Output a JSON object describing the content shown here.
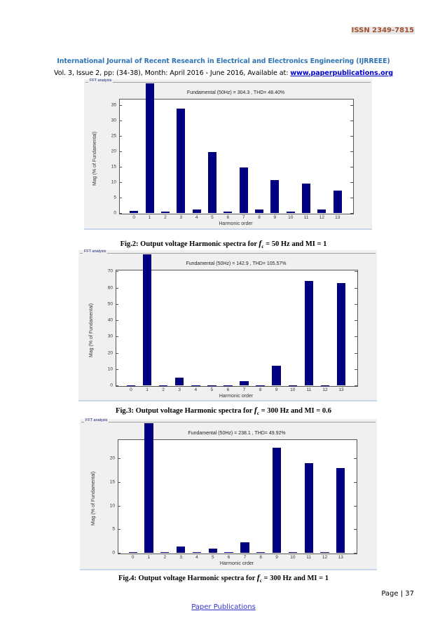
{
  "header": {
    "issn": "ISSN 2349-7815",
    "journal": "International Journal of Recent Research in Electrical and Electronics Engineering (IJRREEE)",
    "vol_text": "Vol. 3, Issue 2, pp: (34-38), Month: April 2016 - June 2016, Available at: ",
    "url": "www.paperpublications.org"
  },
  "figures": [
    {
      "panel_label": "FFT analysis",
      "caption_prefix": "Fig.2: Output voltage Harmonic spectra for ",
      "caption_var": "f",
      "caption_sub": "c",
      "caption_suffix": " = 50 Hz and MI = 1"
    },
    {
      "panel_label": "FFT analysis",
      "caption_prefix": "Fig.3: Output voltage Harmonic spectra for ",
      "caption_var": "f",
      "caption_sub": "c",
      "caption_suffix": " = 300 Hz and MI = 0.6"
    },
    {
      "panel_label": "FFT analysis",
      "caption_prefix": "Fig.4: Output voltage Harmonic spectra for ",
      "caption_var": "f",
      "caption_sub": "c",
      "caption_suffix": " = 300 Hz and MI = 1"
    }
  ],
  "chart_data": [
    {
      "type": "bar",
      "title": "Fundamental (50Hz) = 304.3 , THD= 48.40%",
      "xlabel": "Harmonic order",
      "ylabel": "Mag (% of Fundamental)",
      "categories": [
        "0",
        "1",
        "2",
        "3",
        "4",
        "5",
        "6",
        "7",
        "8",
        "9",
        "10",
        "11",
        "12",
        "13"
      ],
      "values": [
        0.6,
        100,
        0.5,
        33.8,
        1.2,
        19.7,
        0.5,
        14.7,
        1.2,
        10.6,
        0.5,
        9.5,
        1.2,
        7.2
      ],
      "yticks": [
        0,
        5,
        10,
        15,
        20,
        25,
        30,
        35
      ],
      "ylim": [
        0,
        37
      ],
      "grid": false,
      "note": "Fundamental bar (order 1) clipped above axis"
    },
    {
      "type": "bar",
      "title": "Fundamental (50Hz) = 142.9 , THD= 105.57%",
      "xlabel": "Harmonic order",
      "ylabel": "Mag (% of Fundamental)",
      "categories": [
        "0",
        "1",
        "2",
        "3",
        "4",
        "5",
        "6",
        "7",
        "8",
        "9",
        "10",
        "11",
        "12",
        "13"
      ],
      "values": [
        0.2,
        100,
        0.2,
        4.8,
        0.2,
        0.2,
        0.2,
        2.5,
        0.2,
        12.0,
        0.2,
        64.2,
        0.2,
        62.7
      ],
      "yticks": [
        0,
        10,
        20,
        30,
        40,
        50,
        60,
        70
      ],
      "ylim": [
        0,
        71
      ],
      "grid": false,
      "note": "Fundamental bar (order 1) clipped above axis"
    },
    {
      "type": "bar",
      "title": "Fundamental (50Hz) = 238.1 , THD= 49.92%",
      "xlabel": "Harmonic order",
      "ylabel": "Mag (% of Fundamental)",
      "categories": [
        "0",
        "1",
        "2",
        "3",
        "4",
        "5",
        "6",
        "7",
        "8",
        "9",
        "10",
        "11",
        "12",
        "13"
      ],
      "values": [
        0.1,
        100,
        0.1,
        1.3,
        0.1,
        0.9,
        0.1,
        2.2,
        0.1,
        22.2,
        0.1,
        19.0,
        0.1,
        18.0
      ],
      "yticks": [
        0,
        5,
        10,
        15,
        20
      ],
      "ylim": [
        0,
        24
      ],
      "grid": false,
      "note": "Fundamental bar (order 1) clipped above axis"
    }
  ],
  "footer": {
    "page": "Page | 37",
    "publisher": "Paper Publications"
  }
}
